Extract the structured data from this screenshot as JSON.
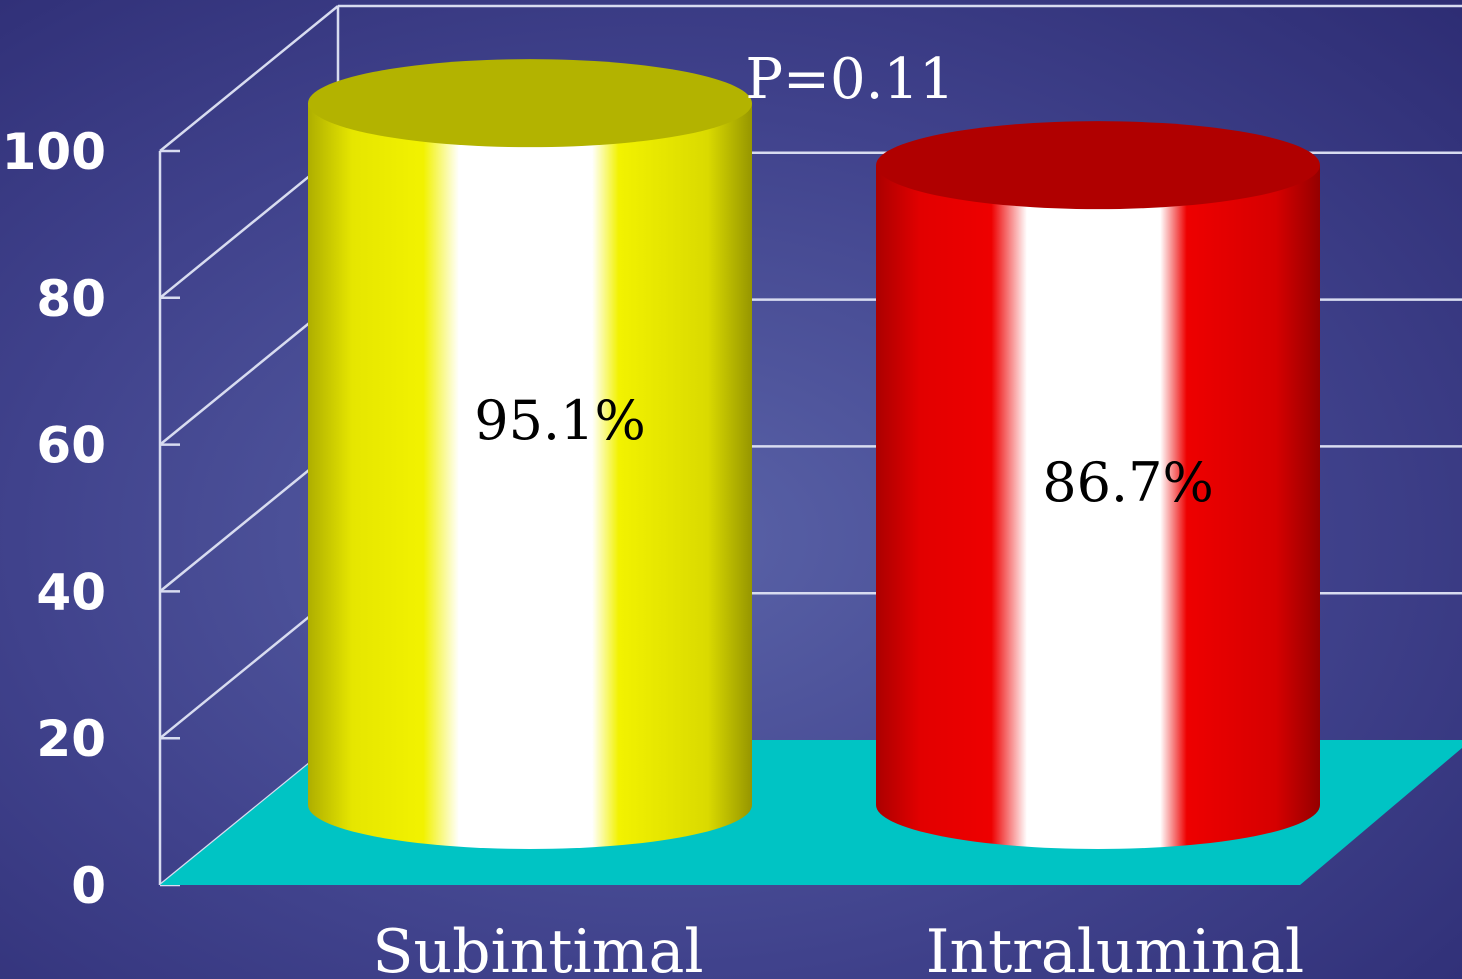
{
  "chart_data": {
    "type": "bar",
    "style": "3d-cylinder",
    "categories": [
      "Subintimal",
      "Intraluminal"
    ],
    "values": [
      95.1,
      86.7
    ],
    "data_labels": [
      "95.1%",
      "86.7%"
    ],
    "bar_colors": [
      "#f2f200",
      "#ee0000"
    ],
    "yticks": [
      "0",
      "20",
      "40",
      "60",
      "80",
      "100"
    ],
    "ylim": [
      0,
      100
    ],
    "annotation": "P=0.11",
    "grid": true,
    "legend": "none",
    "title": "",
    "xlabel": "",
    "ylabel": ""
  },
  "colors": {
    "background": "#3d3d86",
    "floor": "#00c4c4",
    "grid": "#d8dcf0",
    "text": "#ffffff"
  }
}
